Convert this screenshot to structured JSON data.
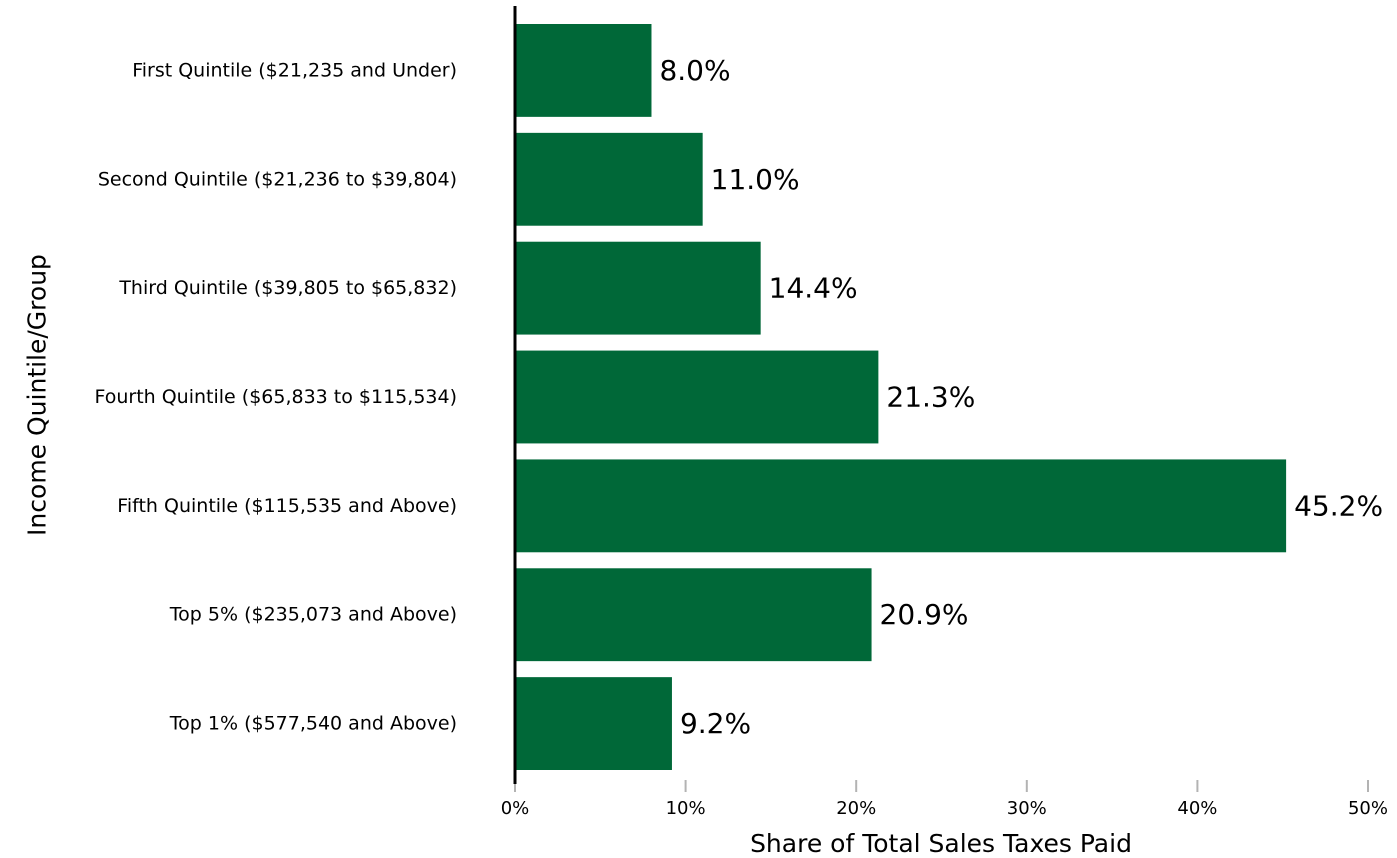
{
  "chart_data": {
    "type": "bar",
    "orientation": "horizontal",
    "title": "",
    "xlabel": "Share of Total Sales Taxes Paid",
    "ylabel": "Income Quintile/Group",
    "xlim": [
      0,
      50
    ],
    "x_ticks": [
      0,
      10,
      20,
      30,
      40,
      50
    ],
    "x_tick_labels": [
      "0%",
      "10%",
      "20%",
      "30%",
      "40%",
      "50%"
    ],
    "grid": false,
    "legend": "none",
    "bar_color": "#006838",
    "categories": [
      "First Quintile ($21,235 and Under)",
      "Second Quintile ($21,236 to $39,804)",
      "Third Quintile ($39,805 to $65,832)",
      "Fourth Quintile ($65,833 to $115,534)",
      "Fifth Quintile ($115,535 and Above)",
      "Top 5% ($235,073 and Above)",
      "Top 1% ($577,540 and Above)"
    ],
    "values": [
      8.0,
      11.0,
      14.4,
      21.3,
      45.2,
      20.9,
      9.2
    ],
    "data_labels": [
      "8.0%",
      "11.0%",
      "14.4%",
      "21.3%",
      "45.2%",
      "20.9%",
      "9.2%"
    ]
  }
}
